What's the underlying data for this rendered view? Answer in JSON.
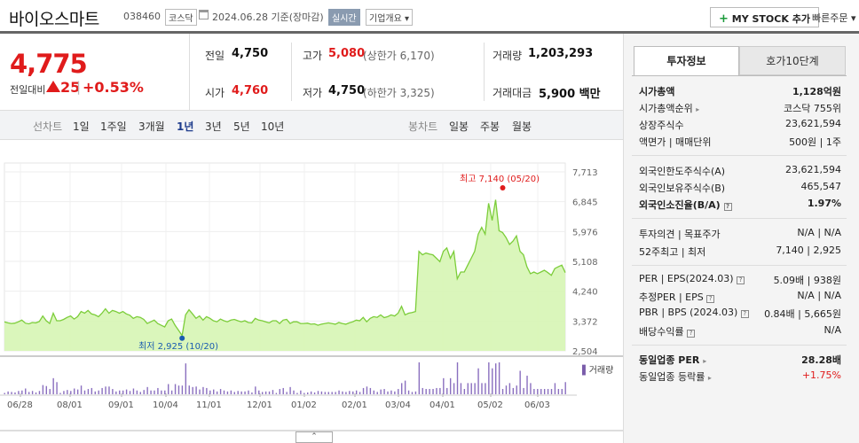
{
  "header": {
    "name": "바이오스마트",
    "code": "038460",
    "market": "코스닥",
    "date": "2024.06.28",
    "basis": "기준(장마감)",
    "realtime": "실시간",
    "company_info": "기업개요",
    "mystock_plus": "+",
    "mystock": "MY STOCK 추가",
    "quick_order": "빠른주문"
  },
  "quote": {
    "price": "4,775",
    "change_label": "전일대비",
    "change": "25",
    "change_pct": "+0.53%",
    "change_sep": "|",
    "prev_label": "전일",
    "prev": "4,750",
    "open_label": "시가",
    "open": "4,760",
    "high_label": "고가",
    "high": "5,080",
    "upper_limit": "(상한가 6,170)",
    "low_label": "저가",
    "low": "4,750",
    "lower_limit": "(하한가 3,325)",
    "volume_label": "거래량",
    "volume": "1,203,293",
    "amount_label": "거래대금",
    "amount": "5,900 백만"
  },
  "tabs": {
    "line_label": "선차트",
    "line": [
      "1일",
      "1주일",
      "3개월",
      "1년",
      "3년",
      "5년",
      "10년"
    ],
    "selected": "1년",
    "candle_label": "봉차트",
    "candle": [
      "일봉",
      "주봉",
      "월봉"
    ]
  },
  "chart_data": {
    "type": "area",
    "y_ticks": [
      "7,713",
      "6,845",
      "5,976",
      "5,108",
      "4,240",
      "3,372",
      "2,504"
    ],
    "ylim": [
      2504,
      7713
    ],
    "x_ticks": [
      "06/28",
      "08/01",
      "09/01",
      "10/04",
      "11/01",
      "12/01",
      "01/02",
      "02/01",
      "03/04",
      "04/01",
      "05/02",
      "06/03"
    ],
    "high_annotation": "최고 7,140 (05/20)",
    "low_annotation": "최저 2,925 (10/20)",
    "volume_label": "거래량",
    "line_color": "#7ccd3a",
    "fill_color": "#d6f5b4",
    "high_color": "#e01b1b",
    "low_color": "#1a5cb0",
    "series": [
      {
        "values": [
          3350,
          3320,
          3300,
          3310,
          3350,
          3400,
          3310,
          3290,
          3330,
          3320,
          3360,
          3520,
          3380,
          3300,
          3600,
          3380,
          3380,
          3420,
          3480,
          3520,
          3430,
          3500,
          3650,
          3600,
          3680,
          3580,
          3550,
          3500,
          3600,
          3730,
          3600,
          3680,
          3650,
          3600,
          3650,
          3580,
          3540,
          3450,
          3500,
          3480,
          3420,
          3300,
          3350,
          3400,
          3300,
          3250,
          3200,
          3380,
          3430,
          3250,
          3100,
          2950,
          3550,
          3700,
          3580,
          3450,
          3520,
          3400,
          3500,
          3450,
          3380,
          3350,
          3430,
          3380,
          3350,
          3400,
          3420,
          3380,
          3350,
          3380,
          3330,
          3320,
          3450,
          3400,
          3380,
          3350,
          3320,
          3380,
          3380,
          3300,
          3400,
          3420,
          3300,
          3350,
          3350,
          3300,
          3300,
          3310,
          3280,
          3290,
          3250,
          3280,
          3300,
          3320,
          3300,
          3280,
          3330,
          3300,
          3280,
          3320,
          3350,
          3400,
          3380,
          3480,
          3350,
          3450,
          3500,
          3480,
          3550,
          3470,
          3500,
          3550,
          3520,
          3600,
          3800,
          3550,
          3600,
          3620,
          3650,
          5400,
          5300,
          5350,
          5320,
          5300,
          5200,
          5100,
          5400,
          5500,
          5200,
          5400,
          4600,
          4800,
          4800,
          5000,
          5200,
          5400,
          5900,
          6100,
          5900,
          6800,
          6300,
          6900,
          6000,
          5950,
          5800,
          5600,
          5700,
          5850,
          5400,
          5300,
          4950,
          4750,
          4800,
          4750,
          4800,
          4850,
          4780,
          4700,
          4900,
          4950,
          5000,
          4780
        ]
      }
    ]
  },
  "investment": {
    "tab_active": "투자정보",
    "tab_other": "호가10단계",
    "rows": [
      {
        "k": "시가총액",
        "v": "1,128억원"
      },
      {
        "k": "시가총액순위",
        "v": "코스닥 755위"
      },
      {
        "k": "상장주식수",
        "v": "23,621,594"
      },
      {
        "k": "액면가 | 매매단위",
        "v": "500원 | 1주"
      },
      {
        "k": "외국인한도주식수(A)",
        "v": "23,621,594"
      },
      {
        "k": "외국인보유주식수(B)",
        "v": "465,547"
      },
      {
        "k": "외국인소진율(B/A)",
        "v": "1.97%"
      },
      {
        "k": "투자의견 | 목표주가",
        "v": "N/A | N/A"
      },
      {
        "k": "52주최고 | 최저",
        "v": "7,140 | 2,925"
      },
      {
        "k": "PER | EPS(2024.03)",
        "v": "5.09배 | 938원"
      },
      {
        "k": "추정PER | EPS",
        "v": "N/A | N/A"
      },
      {
        "k": "PBR | BPS (2024.03)",
        "v": "0.84배 | 5,665원"
      },
      {
        "k": "배당수익률",
        "v": "N/A"
      },
      {
        "k": "동일업종 PER",
        "v": "28.28배"
      },
      {
        "k": "동일업종 등락률",
        "v": "+1.75%"
      }
    ]
  }
}
